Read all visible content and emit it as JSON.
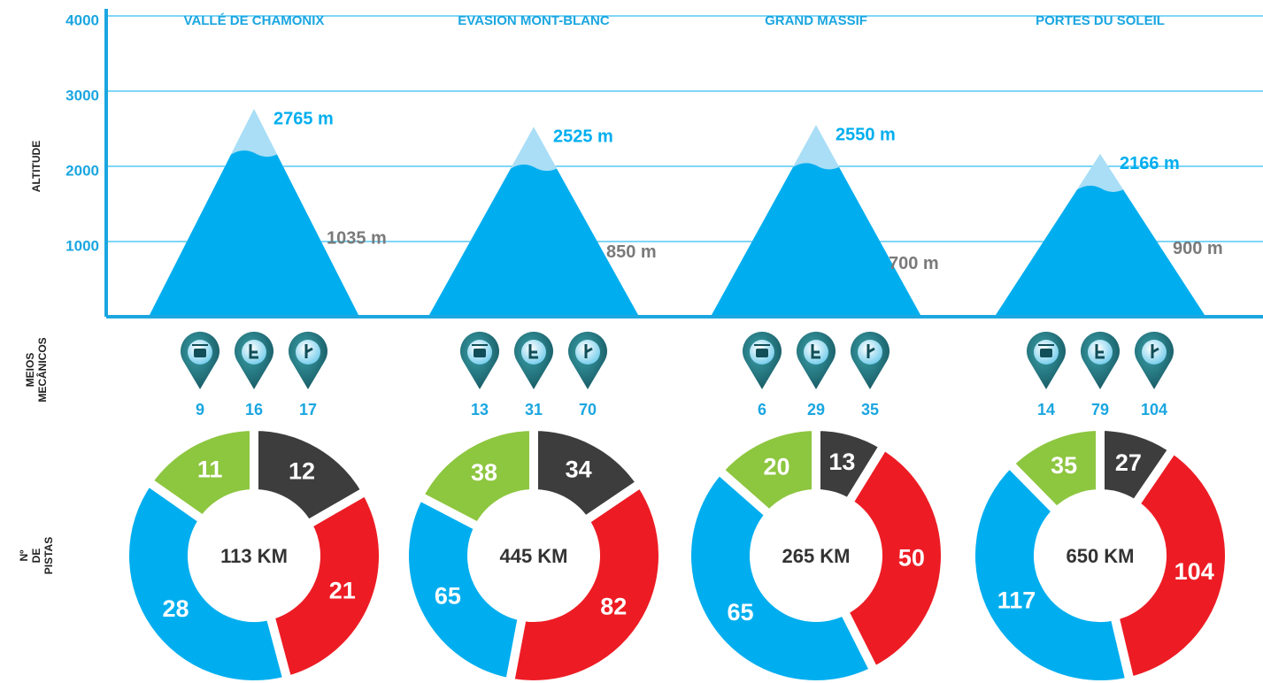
{
  "chart_data": [
    {
      "type": "mountain",
      "y_label": "ALTITUDE",
      "categories": [
        "VALLÉ DE CHAMONIX",
        "EVASION MONT-BLANC",
        "GRAND MASSIF",
        "PORTES DU SOLEIL"
      ],
      "series": [
        {
          "color": "#00aeef",
          "values": [
            2765,
            2525,
            2550,
            2166
          ],
          "value_labels": [
            "2765 m",
            "2525 m",
            "2550 m",
            "2166 m"
          ]
        },
        {
          "color": "#7a7a7a",
          "values": [
            1035,
            850,
            700,
            900
          ],
          "value_labels": [
            "1035 m",
            "850 m",
            "700 m",
            "900 m"
          ]
        }
      ],
      "ylim": [
        0,
        4000
      ],
      "yticks": [
        1000,
        2000,
        3000,
        4000
      ],
      "grid": true
    },
    {
      "type": "lifts",
      "y_label": "MEIOS MECÂNICOS",
      "series": [
        {
          "values": [
            9,
            13,
            6,
            14
          ]
        },
        {
          "values": [
            16,
            31,
            29,
            79
          ]
        },
        {
          "values": [
            17,
            70,
            35,
            104
          ]
        }
      ]
    },
    {
      "type": "donut",
      "y_label": "Nº DE PISTAS",
      "series": [
        {
          "color": "#3d3d3d",
          "values": [
            12,
            34,
            13,
            27
          ]
        },
        {
          "color": "#ed1c24",
          "values": [
            21,
            82,
            50,
            104
          ]
        },
        {
          "color": "#00aeef",
          "values": [
            28,
            65,
            65,
            117
          ]
        },
        {
          "color": "#8dc63f",
          "values": [
            11,
            38,
            20,
            35
          ]
        }
      ],
      "totals": {
        "values": [
          113,
          445,
          265,
          650
        ],
        "value_labels": [
          "113 KM",
          "445 KM",
          "265 KM",
          "650 KM"
        ]
      }
    }
  ]
}
